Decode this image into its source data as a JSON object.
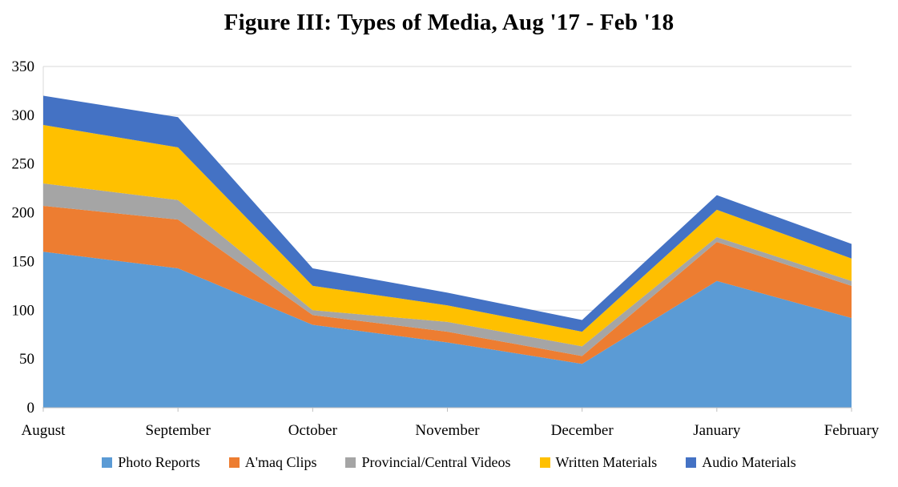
{
  "title": "Figure III: Types of Media, Aug '17 - Feb '18",
  "chart_data": {
    "type": "area",
    "stacked": true,
    "title": "Figure III: Types of Media, Aug '17 - Feb '18",
    "categories": [
      "August",
      "September",
      "October",
      "November",
      "December",
      "January",
      "February"
    ],
    "series": [
      {
        "name": "Photo Reports",
        "color": "#5B9BD5",
        "values": [
          160,
          143,
          85,
          67,
          45,
          130,
          92
        ]
      },
      {
        "name": "A'maq Clips",
        "color": "#ED7D31",
        "values": [
          47,
          50,
          10,
          11,
          8,
          40,
          33
        ]
      },
      {
        "name": "Provincial/Central Videos",
        "color": "#A5A5A5",
        "values": [
          23,
          20,
          5,
          10,
          10,
          5,
          5
        ]
      },
      {
        "name": "Written Materials",
        "color": "#FFC000",
        "values": [
          60,
          54,
          25,
          17,
          15,
          28,
          23
        ]
      },
      {
        "name": "Audio Materials",
        "color": "#4472C4",
        "values": [
          30,
          31,
          18,
          13,
          12,
          15,
          15
        ]
      }
    ],
    "xlabel": "",
    "ylabel": "",
    "ylim": [
      0,
      350
    ],
    "yticks": [
      0,
      50,
      100,
      150,
      200,
      250,
      300,
      350
    ],
    "grid": true,
    "legend_position": "bottom",
    "grid_color": "#D9D9D9",
    "axis_color": "#BFBFBF",
    "text_color": "#000000"
  }
}
